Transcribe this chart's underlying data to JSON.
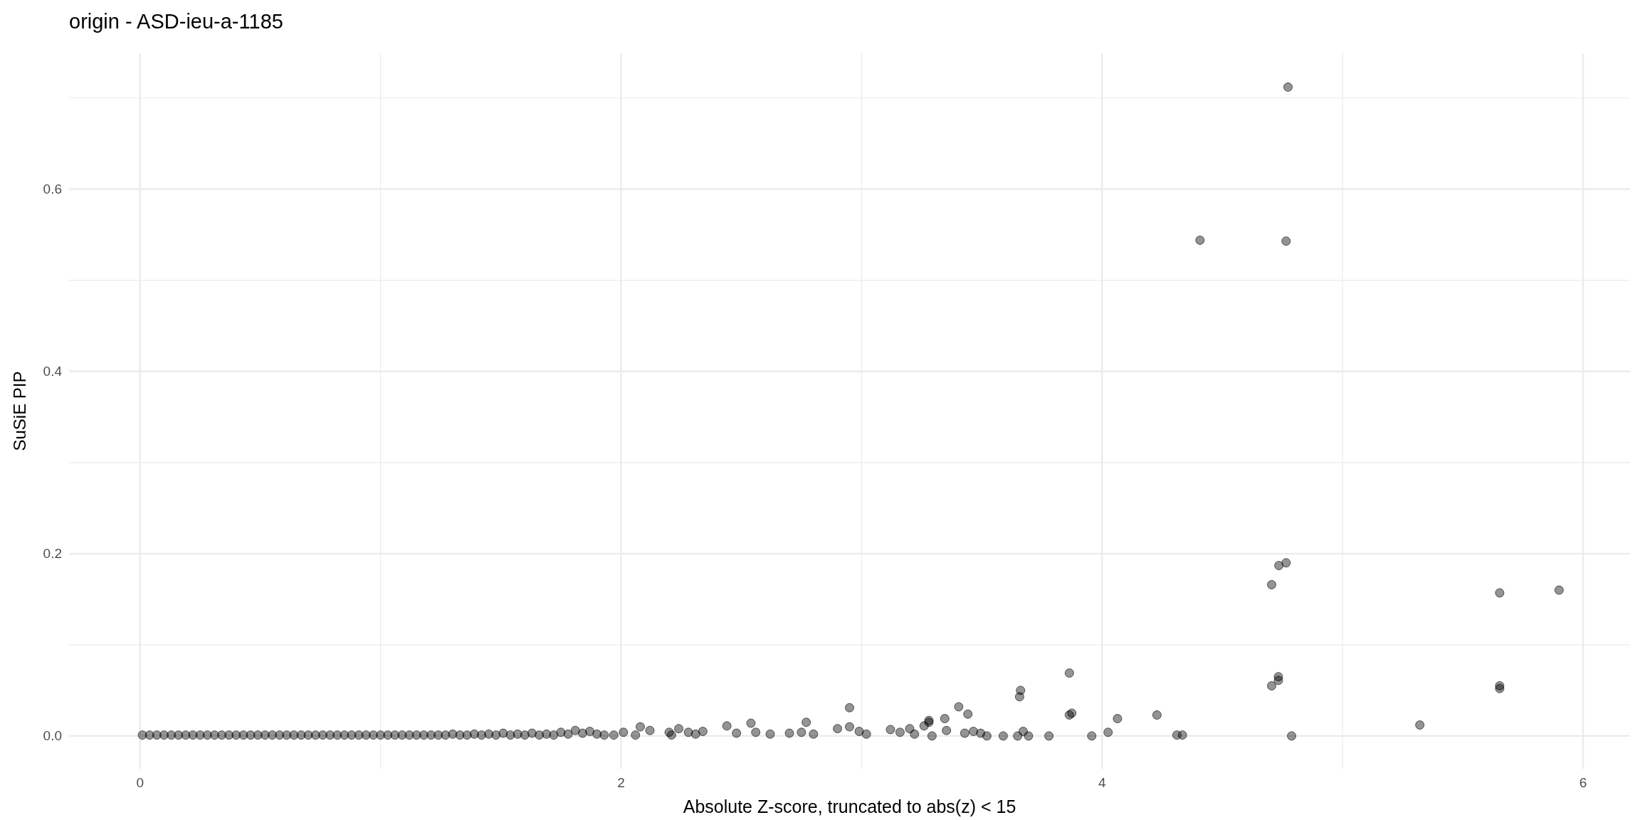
{
  "chart_data": {
    "type": "scatter",
    "title": "origin - ASD-ieu-a-1185",
    "xlabel": "Absolute Z-score, truncated to abs(z) < 15",
    "ylabel": "SuSiE PIP",
    "xlim": [
      -0.295,
      6.195
    ],
    "ylim": [
      -0.036,
      0.749
    ],
    "xticks": [
      0,
      {
        "value": 1,
        "label": null
      },
      2,
      {
        "value": 3,
        "label": null
      },
      4,
      {
        "value": 5,
        "label": null
      },
      6
    ],
    "yticks": [
      {
        "value": 0,
        "label": "0.0"
      },
      {
        "value": 0.1,
        "label": null
      },
      {
        "value": 0.2,
        "label": "0.2"
      },
      {
        "value": 0.3,
        "label": null
      },
      {
        "value": 0.4,
        "label": "0.4"
      },
      {
        "value": 0.5,
        "label": null
      },
      {
        "value": 0.6,
        "label": "0.6"
      },
      {
        "value": 0.7,
        "label": null
      }
    ],
    "grid": true,
    "marker": "circle",
    "series": [
      {
        "color": "#000000",
        "x": [
          0.01,
          0.04,
          0.07,
          0.1,
          0.13,
          0.16,
          0.19,
          0.22,
          0.25,
          0.28,
          0.31,
          0.34,
          0.37,
          0.4,
          0.43,
          0.46,
          0.49,
          0.52,
          0.55,
          0.58,
          0.61,
          0.64,
          0.67,
          0.7,
          0.73,
          0.76,
          0.79,
          0.82,
          0.85,
          0.88,
          0.91,
          0.94,
          0.97,
          1.0,
          1.03,
          1.06,
          1.09,
          1.12,
          1.15,
          1.18,
          1.21,
          1.24,
          1.27,
          1.3,
          1.33,
          1.36,
          1.39,
          1.42,
          1.45,
          1.48,
          1.51,
          1.54,
          1.57,
          1.6,
          1.63,
          1.66,
          1.69,
          1.72,
          1.75,
          1.78,
          1.81,
          1.84,
          1.87,
          1.9,
          1.93,
          1.97,
          2.01,
          2.06,
          2.08,
          2.12,
          2.2,
          2.21,
          2.24,
          2.28,
          2.31,
          2.34,
          2.44,
          2.48,
          2.54,
          2.56,
          2.62,
          2.7,
          2.75,
          2.77,
          2.8,
          2.9,
          2.95,
          2.95,
          2.99,
          3.02,
          3.12,
          3.16,
          3.2,
          3.22,
          3.26,
          3.28,
          3.293,
          3.28,
          3.346,
          3.353,
          3.404,
          3.429,
          3.442,
          3.465,
          3.495,
          3.521,
          3.589,
          3.649,
          3.657,
          3.661,
          3.672,
          3.694,
          3.779,
          3.864,
          3.864,
          3.874,
          3.957,
          4.025,
          4.064,
          4.228,
          4.311,
          4.334,
          4.407,
          4.705,
          4.705,
          4.733,
          4.733,
          4.735,
          4.765,
          4.765,
          4.773,
          4.788,
          5.321,
          5.653,
          5.653,
          5.653,
          5.9
        ],
        "values": [
          0.001,
          0.001,
          0.001,
          0.001,
          0.001,
          0.001,
          0.001,
          0.001,
          0.001,
          0.001,
          0.001,
          0.001,
          0.001,
          0.001,
          0.001,
          0.001,
          0.001,
          0.001,
          0.001,
          0.001,
          0.001,
          0.001,
          0.001,
          0.001,
          0.001,
          0.001,
          0.001,
          0.001,
          0.001,
          0.001,
          0.001,
          0.001,
          0.001,
          0.001,
          0.001,
          0.001,
          0.001,
          0.001,
          0.001,
          0.001,
          0.001,
          0.001,
          0.001,
          0.002,
          0.001,
          0.001,
          0.002,
          0.001,
          0.002,
          0.001,
          0.003,
          0.001,
          0.002,
          0.001,
          0.003,
          0.001,
          0.002,
          0.001,
          0.004,
          0.002,
          0.006,
          0.003,
          0.005,
          0.002,
          0.001,
          0.001,
          0.004,
          0.001,
          0.01,
          0.006,
          0.004,
          0.001,
          0.008,
          0.004,
          0.002,
          0.005,
          0.011,
          0.003,
          0.014,
          0.004,
          0.002,
          0.003,
          0.004,
          0.015,
          0.002,
          0.008,
          0.031,
          0.01,
          0.005,
          0.002,
          0.007,
          0.004,
          0.008,
          0.002,
          0.011,
          0.017,
          0.0,
          0.015,
          0.019,
          0.006,
          0.032,
          0.003,
          0.024,
          0.005,
          0.003,
          0.0,
          0.0,
          0.0,
          0.043,
          0.05,
          0.005,
          0.0,
          0.0,
          0.069,
          0.023,
          0.025,
          0.0,
          0.004,
          0.019,
          0.023,
          0.001,
          0.001,
          0.544,
          0.166,
          0.055,
          0.065,
          0.061,
          0.187,
          0.19,
          0.543,
          0.712,
          0.0,
          0.012,
          0.157,
          0.055,
          0.052,
          0.16
        ]
      }
    ]
  }
}
